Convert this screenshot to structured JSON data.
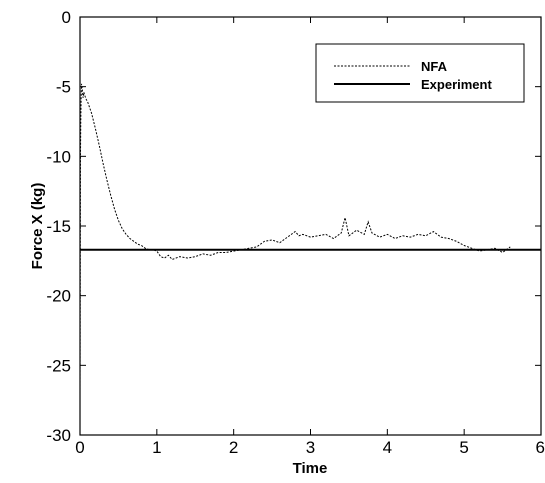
{
  "chart_data": {
    "type": "line",
    "title": "",
    "xlabel": "Time",
    "ylabel": "Force X (kg)",
    "xlim": [
      0,
      6
    ],
    "ylim": [
      -30,
      0
    ],
    "xticks": [
      "0",
      "1",
      "2",
      "3",
      "4",
      "5",
      "6"
    ],
    "yticks": [
      "0",
      "-5",
      "-10",
      "-15",
      "-20",
      "-25",
      "-30"
    ],
    "grid": false,
    "legend_position": "top-right",
    "series": [
      {
        "name": "NFA",
        "style": "dotted",
        "color": "#000000",
        "x": [
          0.0,
          0.002,
          0.004,
          0.006,
          0.01,
          0.015,
          0.02,
          0.03,
          0.04,
          0.05,
          0.06,
          0.08,
          0.1,
          0.15,
          0.2,
          0.25,
          0.3,
          0.35,
          0.4,
          0.45,
          0.5,
          0.55,
          0.6,
          0.65,
          0.7,
          0.75,
          0.8,
          0.85,
          0.9,
          0.95,
          1.0,
          1.05,
          1.1,
          1.15,
          1.2,
          1.3,
          1.4,
          1.5,
          1.6,
          1.7,
          1.8,
          1.9,
          2.0,
          2.1,
          2.2,
          2.3,
          2.4,
          2.5,
          2.6,
          2.7,
          2.75,
          2.8,
          2.85,
          2.9,
          3.0,
          3.1,
          3.2,
          3.3,
          3.4,
          3.45,
          3.5,
          3.6,
          3.7,
          3.75,
          3.8,
          3.9,
          4.0,
          4.1,
          4.2,
          4.3,
          4.4,
          4.5,
          4.6,
          4.7,
          4.8,
          4.9,
          5.0,
          5.1,
          5.2,
          5.3,
          5.4,
          5.5,
          5.6
        ],
        "y": [
          -27.0,
          -22.0,
          -15.0,
          -10.0,
          -7.5,
          -5.8,
          -4.8,
          -5.2,
          -5.8,
          -5.4,
          -5.6,
          -5.9,
          -6.1,
          -6.9,
          -8.0,
          -9.2,
          -10.5,
          -11.7,
          -12.8,
          -13.8,
          -14.6,
          -15.2,
          -15.6,
          -15.9,
          -16.1,
          -16.3,
          -16.4,
          -16.6,
          -16.7,
          -16.7,
          -16.8,
          -17.2,
          -17.3,
          -17.1,
          -17.4,
          -17.2,
          -17.3,
          -17.2,
          -17.0,
          -17.1,
          -16.9,
          -16.9,
          -16.8,
          -16.7,
          -16.6,
          -16.5,
          -16.1,
          -16.0,
          -16.2,
          -15.8,
          -15.6,
          -15.4,
          -15.7,
          -15.6,
          -15.8,
          -15.7,
          -15.6,
          -15.9,
          -15.5,
          -14.4,
          -15.7,
          -15.3,
          -15.6,
          -14.7,
          -15.5,
          -15.8,
          -15.6,
          -15.9,
          -15.7,
          -15.8,
          -15.6,
          -15.7,
          -15.4,
          -15.8,
          -15.9,
          -16.1,
          -16.4,
          -16.6,
          -16.8,
          -16.7,
          -16.6,
          -16.9,
          -16.5
        ]
      },
      {
        "name": "Experiment",
        "style": "solid",
        "color": "#000000",
        "x": [
          0,
          6
        ],
        "y": [
          -16.7,
          -16.7
        ]
      }
    ]
  }
}
